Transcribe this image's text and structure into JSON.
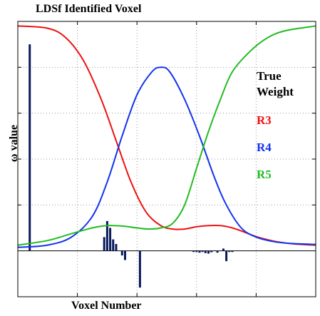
{
  "chart_data": {
    "type": "line",
    "title": "LDSf Identified Voxel",
    "xlabel": "Voxel Number",
    "ylabel": "ω value",
    "x_range": [
      0,
      100
    ],
    "y_range": [
      -0.2,
      1.0
    ],
    "grid": true,
    "legend": {
      "placement": "right",
      "heading_lines": [
        "True",
        "Weight"
      ],
      "entries": [
        {
          "label": "R3",
          "color": "#ee1111"
        },
        {
          "label": "R4",
          "color": "#1133ee"
        },
        {
          "label": "R5",
          "color": "#22bb22"
        }
      ]
    },
    "series": [
      {
        "name": "R3",
        "color": "#ee1111",
        "points": [
          [
            0,
            0.98
          ],
          [
            10,
            0.97
          ],
          [
            16,
            0.93
          ],
          [
            22,
            0.83
          ],
          [
            28,
            0.66
          ],
          [
            33,
            0.48
          ],
          [
            38,
            0.3
          ],
          [
            43,
            0.17
          ],
          [
            48,
            0.11
          ],
          [
            52,
            0.095
          ],
          [
            56,
            0.095
          ],
          [
            60,
            0.105
          ],
          [
            64,
            0.11
          ],
          [
            68,
            0.11
          ],
          [
            72,
            0.1
          ],
          [
            76,
            0.082
          ],
          [
            80,
            0.062
          ],
          [
            85,
            0.045
          ],
          [
            90,
            0.034
          ],
          [
            95,
            0.028
          ],
          [
            100,
            0.025
          ]
        ]
      },
      {
        "name": "R4",
        "color": "#1133ee",
        "points": [
          [
            0,
            0.015
          ],
          [
            10,
            0.025
          ],
          [
            18,
            0.06
          ],
          [
            25,
            0.15
          ],
          [
            30,
            0.3
          ],
          [
            35,
            0.5
          ],
          [
            40,
            0.68
          ],
          [
            45,
            0.78
          ],
          [
            48,
            0.8
          ],
          [
            51,
            0.78
          ],
          [
            56,
            0.66
          ],
          [
            61,
            0.5
          ],
          [
            66,
            0.32
          ],
          [
            70,
            0.2
          ],
          [
            75,
            0.1
          ],
          [
            80,
            0.06
          ],
          [
            86,
            0.04
          ],
          [
            92,
            0.032
          ],
          [
            100,
            0.028
          ]
        ]
      },
      {
        "name": "R5",
        "color": "#22bb22",
        "points": [
          [
            0,
            0.025
          ],
          [
            10,
            0.045
          ],
          [
            18,
            0.075
          ],
          [
            25,
            0.1
          ],
          [
            30,
            0.11
          ],
          [
            35,
            0.108
          ],
          [
            40,
            0.1
          ],
          [
            44,
            0.095
          ],
          [
            48,
            0.1
          ],
          [
            52,
            0.12
          ],
          [
            56,
            0.2
          ],
          [
            60,
            0.36
          ],
          [
            64,
            0.52
          ],
          [
            68,
            0.66
          ],
          [
            72,
            0.78
          ],
          [
            78,
            0.87
          ],
          [
            84,
            0.93
          ],
          [
            90,
            0.96
          ],
          [
            100,
            0.98
          ]
        ]
      }
    ],
    "bars": {
      "name": "LDSf Identified Voxel",
      "color": "#0a1a5a",
      "points": [
        [
          4,
          0.9
        ],
        [
          29,
          0.06
        ],
        [
          30,
          0.13
        ],
        [
          31,
          0.1
        ],
        [
          32,
          0.05
        ],
        [
          33,
          0.03
        ],
        [
          35,
          -0.02
        ],
        [
          36,
          -0.04
        ],
        [
          41,
          -0.16
        ],
        [
          59,
          -0.005
        ],
        [
          60,
          -0.005
        ],
        [
          61,
          -0.008
        ],
        [
          62,
          -0.005
        ],
        [
          63,
          -0.01
        ],
        [
          64,
          -0.012
        ],
        [
          65,
          -0.006
        ],
        [
          67,
          -0.008
        ],
        [
          69,
          0.01
        ],
        [
          70,
          -0.045
        ],
        [
          71,
          -0.005
        ],
        [
          72,
          -0.005
        ]
      ]
    }
  }
}
